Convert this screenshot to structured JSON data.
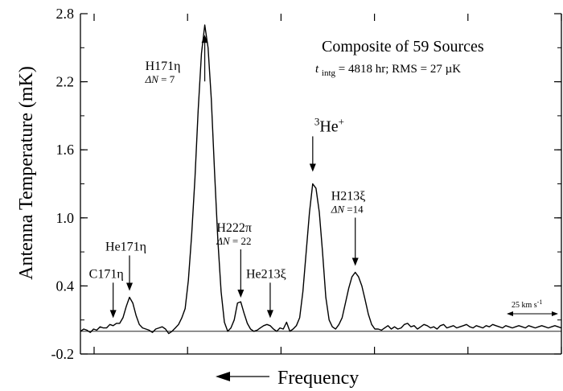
{
  "chart_data": {
    "type": "line",
    "title": "Composite of 59 Sources",
    "subtitle": {
      "t_symbol": "t",
      "t_subscript": "intg",
      "rest": " = 4818 hr;  RMS = 27 µK"
    },
    "xlabel": "Frequency",
    "ylabel": "Antenna Temperature (mK)",
    "ylim": [
      -0.2,
      2.8
    ],
    "yticks": [
      "-0.2",
      "0.4",
      "1.0",
      "1.6",
      "2.2",
      "2.8"
    ],
    "ytick_values": [
      -0.2,
      0.4,
      1.0,
      1.6,
      2.2,
      2.8
    ],
    "xtick_count": 5,
    "x_direction_arrow": "left",
    "grid": false,
    "baseline_value": 0.0,
    "velocity_scale_label": "25 km s",
    "velocity_scale_exp": "-1",
    "series": [
      {
        "x": [
          0,
          4,
          8,
          12,
          16,
          20,
          24,
          28,
          32,
          36,
          40,
          44,
          48,
          52,
          56,
          60,
          64,
          68,
          72,
          76,
          80,
          84,
          88,
          92,
          96,
          100,
          104,
          108,
          112,
          116,
          120,
          124,
          128,
          132,
          136,
          140,
          144,
          148,
          152,
          156,
          160,
          164,
          168,
          172,
          176,
          180,
          184,
          188,
          192,
          196,
          200,
          204,
          208,
          212,
          216,
          220,
          224,
          228,
          232,
          236,
          240,
          244,
          248,
          252,
          256,
          260,
          264,
          268,
          272,
          276,
          280,
          284,
          288,
          292,
          296,
          300,
          304,
          308,
          312,
          316,
          320,
          324,
          328,
          332,
          336,
          340,
          344,
          348,
          352,
          356,
          360,
          364,
          368,
          372,
          376,
          380,
          384,
          388,
          392,
          396,
          400,
          404,
          408,
          412,
          416,
          420,
          424,
          428,
          432,
          436,
          440,
          444,
          448,
          452,
          456,
          460,
          464,
          468,
          472,
          476,
          480,
          484,
          488,
          492,
          496,
          500,
          504,
          508,
          512,
          516,
          520,
          524,
          528,
          532,
          536,
          540,
          544,
          548,
          552,
          556,
          560,
          564,
          568,
          572,
          576,
          580,
          584,
          588
        ],
        "y": [
          0.0,
          0.02,
          0.01,
          -0.01,
          0.02,
          0.01,
          0.04,
          0.03,
          0.03,
          0.06,
          0.05,
          0.07,
          0.07,
          0.12,
          0.22,
          0.3,
          0.25,
          0.14,
          0.06,
          0.03,
          0.02,
          0.01,
          -0.01,
          0.02,
          0.03,
          0.04,
          0.02,
          -0.02,
          0.0,
          0.03,
          0.06,
          0.12,
          0.2,
          0.45,
          0.85,
          1.35,
          1.95,
          2.45,
          2.7,
          2.5,
          2.05,
          1.4,
          0.8,
          0.35,
          0.08,
          0.0,
          0.03,
          0.1,
          0.25,
          0.26,
          0.16,
          0.07,
          0.02,
          0.0,
          0.01,
          0.03,
          0.05,
          0.06,
          0.05,
          0.02,
          0.0,
          0.03,
          0.02,
          0.08,
          0.0,
          0.02,
          0.05,
          0.12,
          0.35,
          0.7,
          1.05,
          1.3,
          1.26,
          1.05,
          0.7,
          0.3,
          0.1,
          0.04,
          0.02,
          0.06,
          0.12,
          0.25,
          0.38,
          0.48,
          0.52,
          0.48,
          0.4,
          0.28,
          0.15,
          0.06,
          0.02,
          0.02,
          0.01,
          0.03,
          0.05,
          0.02,
          0.04,
          0.02,
          0.03,
          0.06,
          0.07,
          0.04,
          0.05,
          0.02,
          0.04,
          0.06,
          0.05,
          0.03,
          0.04,
          0.02,
          0.05,
          0.06,
          0.03,
          0.04,
          0.05,
          0.03,
          0.04,
          0.05,
          0.06,
          0.04,
          0.03,
          0.05,
          0.04,
          0.03,
          0.05,
          0.04,
          0.06,
          0.05,
          0.04,
          0.03,
          0.05,
          0.04,
          0.03,
          0.04,
          0.05,
          0.04,
          0.03,
          0.05,
          0.04,
          0.03,
          0.04,
          0.05,
          0.04,
          0.03,
          0.04,
          0.05,
          0.04,
          0.03
        ]
      }
    ],
    "annotations": [
      {
        "label": "C171η",
        "sub": "",
        "x": 40,
        "y": 0.06,
        "arrow": "down"
      },
      {
        "label": "He171η",
        "sub": "",
        "x": 60,
        "y": 0.3,
        "arrow": "down"
      },
      {
        "label": "H171η",
        "sub_prefix": "ΔN",
        "sub": " = 7",
        "x": 152,
        "y": 2.6,
        "arrow": "up"
      },
      {
        "label": "H222π",
        "sub_prefix": "ΔN",
        "sub": " = 22",
        "x": 196,
        "y": 0.24,
        "arrow": "down"
      },
      {
        "label": "He213ξ",
        "sub": "",
        "x": 232,
        "y": 0.06,
        "arrow": "down"
      },
      {
        "label": "He",
        "sup": "3",
        "sup_after": "+",
        "x": 284,
        "y": 1.35,
        "arrow": "down"
      },
      {
        "label": "H213ξ",
        "sub_prefix": "ΔN",
        "sub": " =14",
        "x": 336,
        "y": 0.52,
        "arrow": "down"
      }
    ]
  }
}
